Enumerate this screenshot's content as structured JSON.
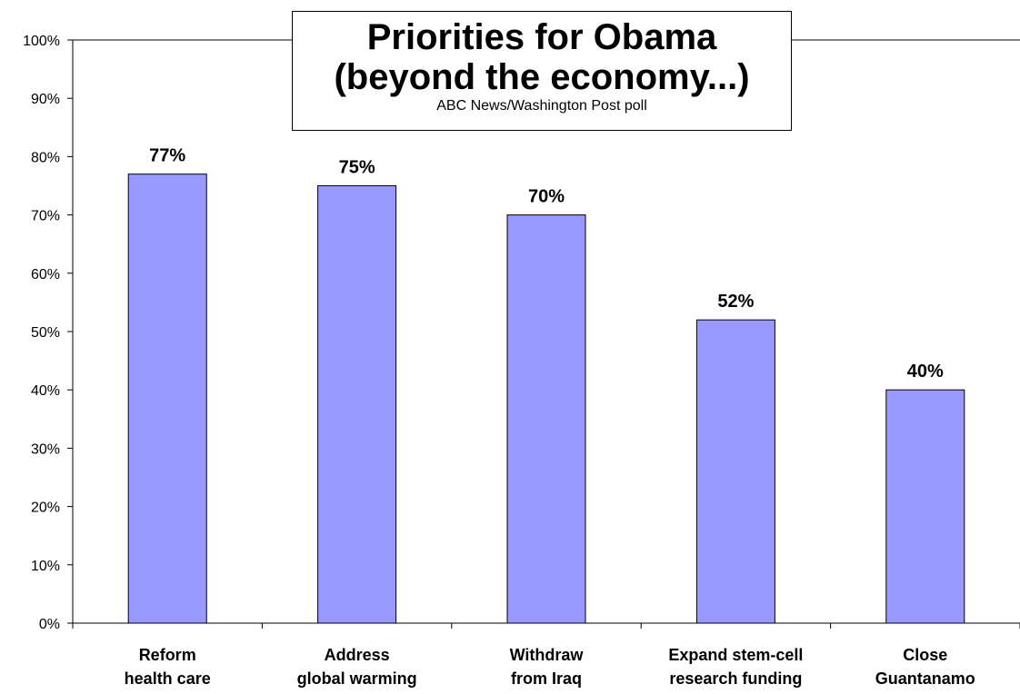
{
  "chart_data": {
    "type": "bar",
    "title_lines": [
      "Priorities for Obama",
      "(beyond the economy...)"
    ],
    "subtitle": "ABC News/Washington Post poll",
    "categories": [
      [
        "Reform",
        "health care"
      ],
      [
        "Address",
        "global warming"
      ],
      [
        "Withdraw",
        "from Iraq"
      ],
      [
        "Expand stem-cell",
        "research funding"
      ],
      [
        "Close",
        "Guantanamo"
      ]
    ],
    "values": [
      77,
      75,
      70,
      52,
      40
    ],
    "data_labels": [
      "77%",
      "75%",
      "70%",
      "52%",
      "40%"
    ],
    "yticks": [
      "0%",
      "10%",
      "20%",
      "30%",
      "40%",
      "50%",
      "60%",
      "70%",
      "80%",
      "90%",
      "100%"
    ],
    "ylim": [
      0,
      100
    ],
    "grid": false,
    "legend": "none",
    "colors": {
      "bar": "#9999ff",
      "bar_stroke": "#000000",
      "axis": "#000000"
    }
  }
}
